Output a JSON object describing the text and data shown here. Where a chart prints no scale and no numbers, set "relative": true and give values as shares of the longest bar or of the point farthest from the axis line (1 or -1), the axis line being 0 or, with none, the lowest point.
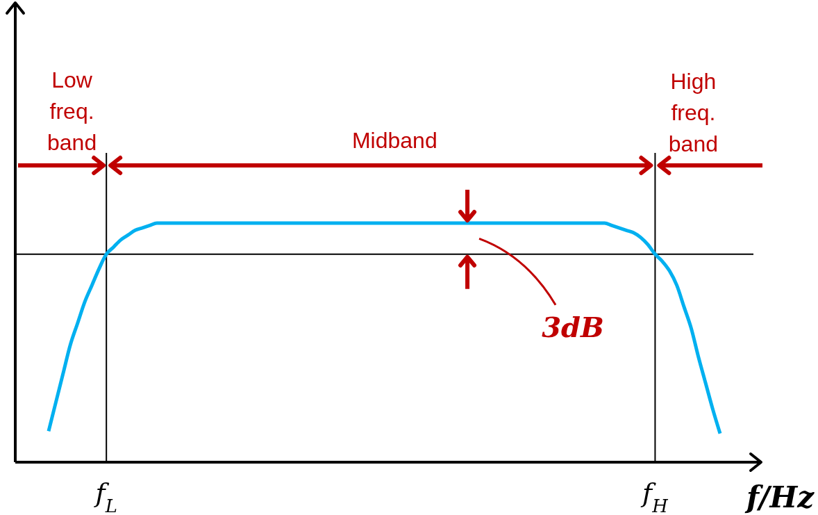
{
  "chart_data": {
    "type": "line",
    "relative": true,
    "xlabel": "f/Hz",
    "categories": [
      null,
      null,
      null,
      null,
      null,
      null,
      null,
      null,
      "f$_{L}$",
      null,
      null,
      null,
      null,
      null,
      null,
      null,
      null,
      null,
      null,
      null,
      null,
      null,
      null,
      null,
      null,
      null,
      null,
      null,
      null,
      null,
      null,
      null,
      null,
      null,
      null,
      null,
      null,
      null,
      null,
      null,
      null,
      null,
      null,
      null,
      null,
      null,
      null,
      null,
      null,
      null,
      null,
      null,
      null,
      null,
      null,
      null,
      null,
      null,
      null,
      null,
      null,
      null,
      null,
      null,
      null,
      null,
      null,
      null,
      null,
      null,
      null,
      null,
      null,
      null,
      null,
      null,
      null,
      null,
      null,
      null,
      null,
      null,
      null,
      null,
      "f$_{H}$",
      null,
      null,
      null,
      null,
      null,
      null,
      null,
      null,
      null
    ],
    "series": [
      {
        "color": "#00b0f0",
        "values": [
          0.13,
          0.25,
          0.37,
          0.49,
          0.58,
          0.67,
          0.74,
          0.81,
          0.87,
          0.9,
          0.93,
          0.95,
          0.97,
          0.98,
          0.99,
          1,
          1,
          1,
          1,
          1,
          1,
          1,
          1,
          1,
          1,
          1,
          1,
          1,
          1,
          1,
          1,
          1,
          1,
          1,
          1,
          1,
          1,
          1,
          1,
          1,
          1,
          1,
          1,
          1,
          1,
          1,
          1,
          1,
          1,
          1,
          1,
          1,
          1,
          1,
          1,
          1,
          1,
          1,
          1,
          1,
          1,
          1,
          1,
          1,
          1,
          1,
          1,
          1,
          1,
          1,
          1,
          1,
          1,
          1,
          1,
          1,
          1,
          1,
          0.99,
          0.98,
          0.97,
          0.96,
          0.94,
          0.91,
          0.87,
          0.84,
          0.8,
          0.74,
          0.65,
          0.56,
          0.44,
          0.33,
          0.22,
          0.12
        ]
      }
    ],
    "ref_lines": [
      {
        "axis": "x",
        "value": "f$_{L}$",
        "color": "#000000"
      },
      {
        "axis": "x",
        "value": "f$_{H}$",
        "color": "#000000"
      },
      {
        "axis": "y",
        "value": 0.87,
        "color": "#000000"
      }
    ],
    "annotations": [
      "Low freq. band",
      "Midband",
      "High freq. band",
      "3dB"
    ],
    "marker": "none",
    "line_style": "solid"
  }
}
